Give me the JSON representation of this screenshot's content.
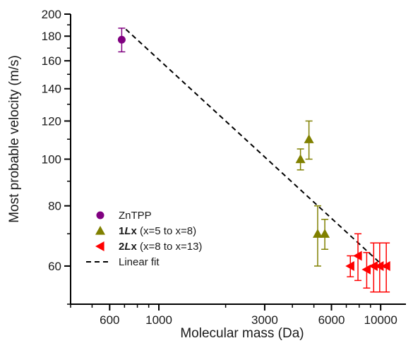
{
  "chart_data": {
    "type": "scatter",
    "xlabel": "Molecular mass (Da)",
    "ylabel": "Most probable velocity (m/s)",
    "x_scale": "log",
    "y_scale": "log",
    "xlim": [
      400,
      13000
    ],
    "ylim": [
      50,
      200
    ],
    "x_ticks": [
      {
        "value": 600,
        "label": "600"
      },
      {
        "value": 1000,
        "label": "1000"
      },
      {
        "value": 3000,
        "label": "3000"
      },
      {
        "value": 6000,
        "label": "6000"
      },
      {
        "value": 10000,
        "label": "10000"
      }
    ],
    "y_ticks": [
      {
        "value": 60,
        "label": "60"
      },
      {
        "value": 80,
        "label": "80"
      },
      {
        "value": 100,
        "label": "100"
      },
      {
        "value": 120,
        "label": "120"
      },
      {
        "value": 140,
        "label": "140"
      },
      {
        "value": 160,
        "label": "160"
      },
      {
        "value": 180,
        "label": "180"
      },
      {
        "value": 200,
        "label": "200"
      }
    ],
    "grid": false,
    "legend_position": "bottom-left",
    "series": [
      {
        "name": "ZnTPP",
        "legend_parts": [
          {
            "text": "ZnTPP",
            "bold": false,
            "italic": false
          }
        ],
        "marker": "circle",
        "color": "#800080",
        "points": [
          {
            "x": 680,
            "y": 177,
            "err_low": 10,
            "err_high": 10
          }
        ]
      },
      {
        "name": "1Lx (x=5 to x=8)",
        "legend_parts": [
          {
            "text": "1",
            "bold": true,
            "italic": false
          },
          {
            "text": "L",
            "bold": true,
            "italic": true
          },
          {
            "text": "x",
            "bold": true,
            "italic": false
          },
          {
            "text": " (x=5 to x=8)",
            "bold": false,
            "italic": false
          }
        ],
        "marker": "triangle-up",
        "color": "#808000",
        "points": [
          {
            "x": 4350,
            "y": 100,
            "err_low": 5,
            "err_high": 5
          },
          {
            "x": 4750,
            "y": 110,
            "err_low": 10,
            "err_high": 10
          },
          {
            "x": 5200,
            "y": 70,
            "err_low": 10,
            "err_high": 10
          },
          {
            "x": 5600,
            "y": 70,
            "err_low": 5,
            "err_high": 5
          }
        ]
      },
      {
        "name": "2Lx (x=8 to x=13)",
        "legend_parts": [
          {
            "text": "2",
            "bold": true,
            "italic": false
          },
          {
            "text": "L",
            "bold": true,
            "italic": true
          },
          {
            "text": "x",
            "bold": true,
            "italic": false
          },
          {
            "text": " (x=8 to x=13)",
            "bold": false,
            "italic": false
          }
        ],
        "marker": "triangle-left",
        "color": "#ff0000",
        "points": [
          {
            "x": 7300,
            "y": 60,
            "err_low": 3,
            "err_high": 3
          },
          {
            "x": 7900,
            "y": 63,
            "err_low": 7,
            "err_high": 7
          },
          {
            "x": 8650,
            "y": 59,
            "err_low": 5,
            "err_high": 5
          },
          {
            "x": 9300,
            "y": 60,
            "err_low": 7,
            "err_high": 7
          },
          {
            "x": 9900,
            "y": 60,
            "err_low": 7,
            "err_high": 7
          },
          {
            "x": 10600,
            "y": 60,
            "err_low": 7,
            "err_high": 7
          }
        ]
      }
    ],
    "fit": {
      "name": "Linear fit",
      "legend_parts": [
        {
          "text": "Linear fit",
          "bold": false,
          "italic": false
        }
      ],
      "style": "dashed",
      "color": "#000000",
      "x": [
        710,
        10700
      ],
      "y": [
        186,
        59
      ]
    }
  }
}
